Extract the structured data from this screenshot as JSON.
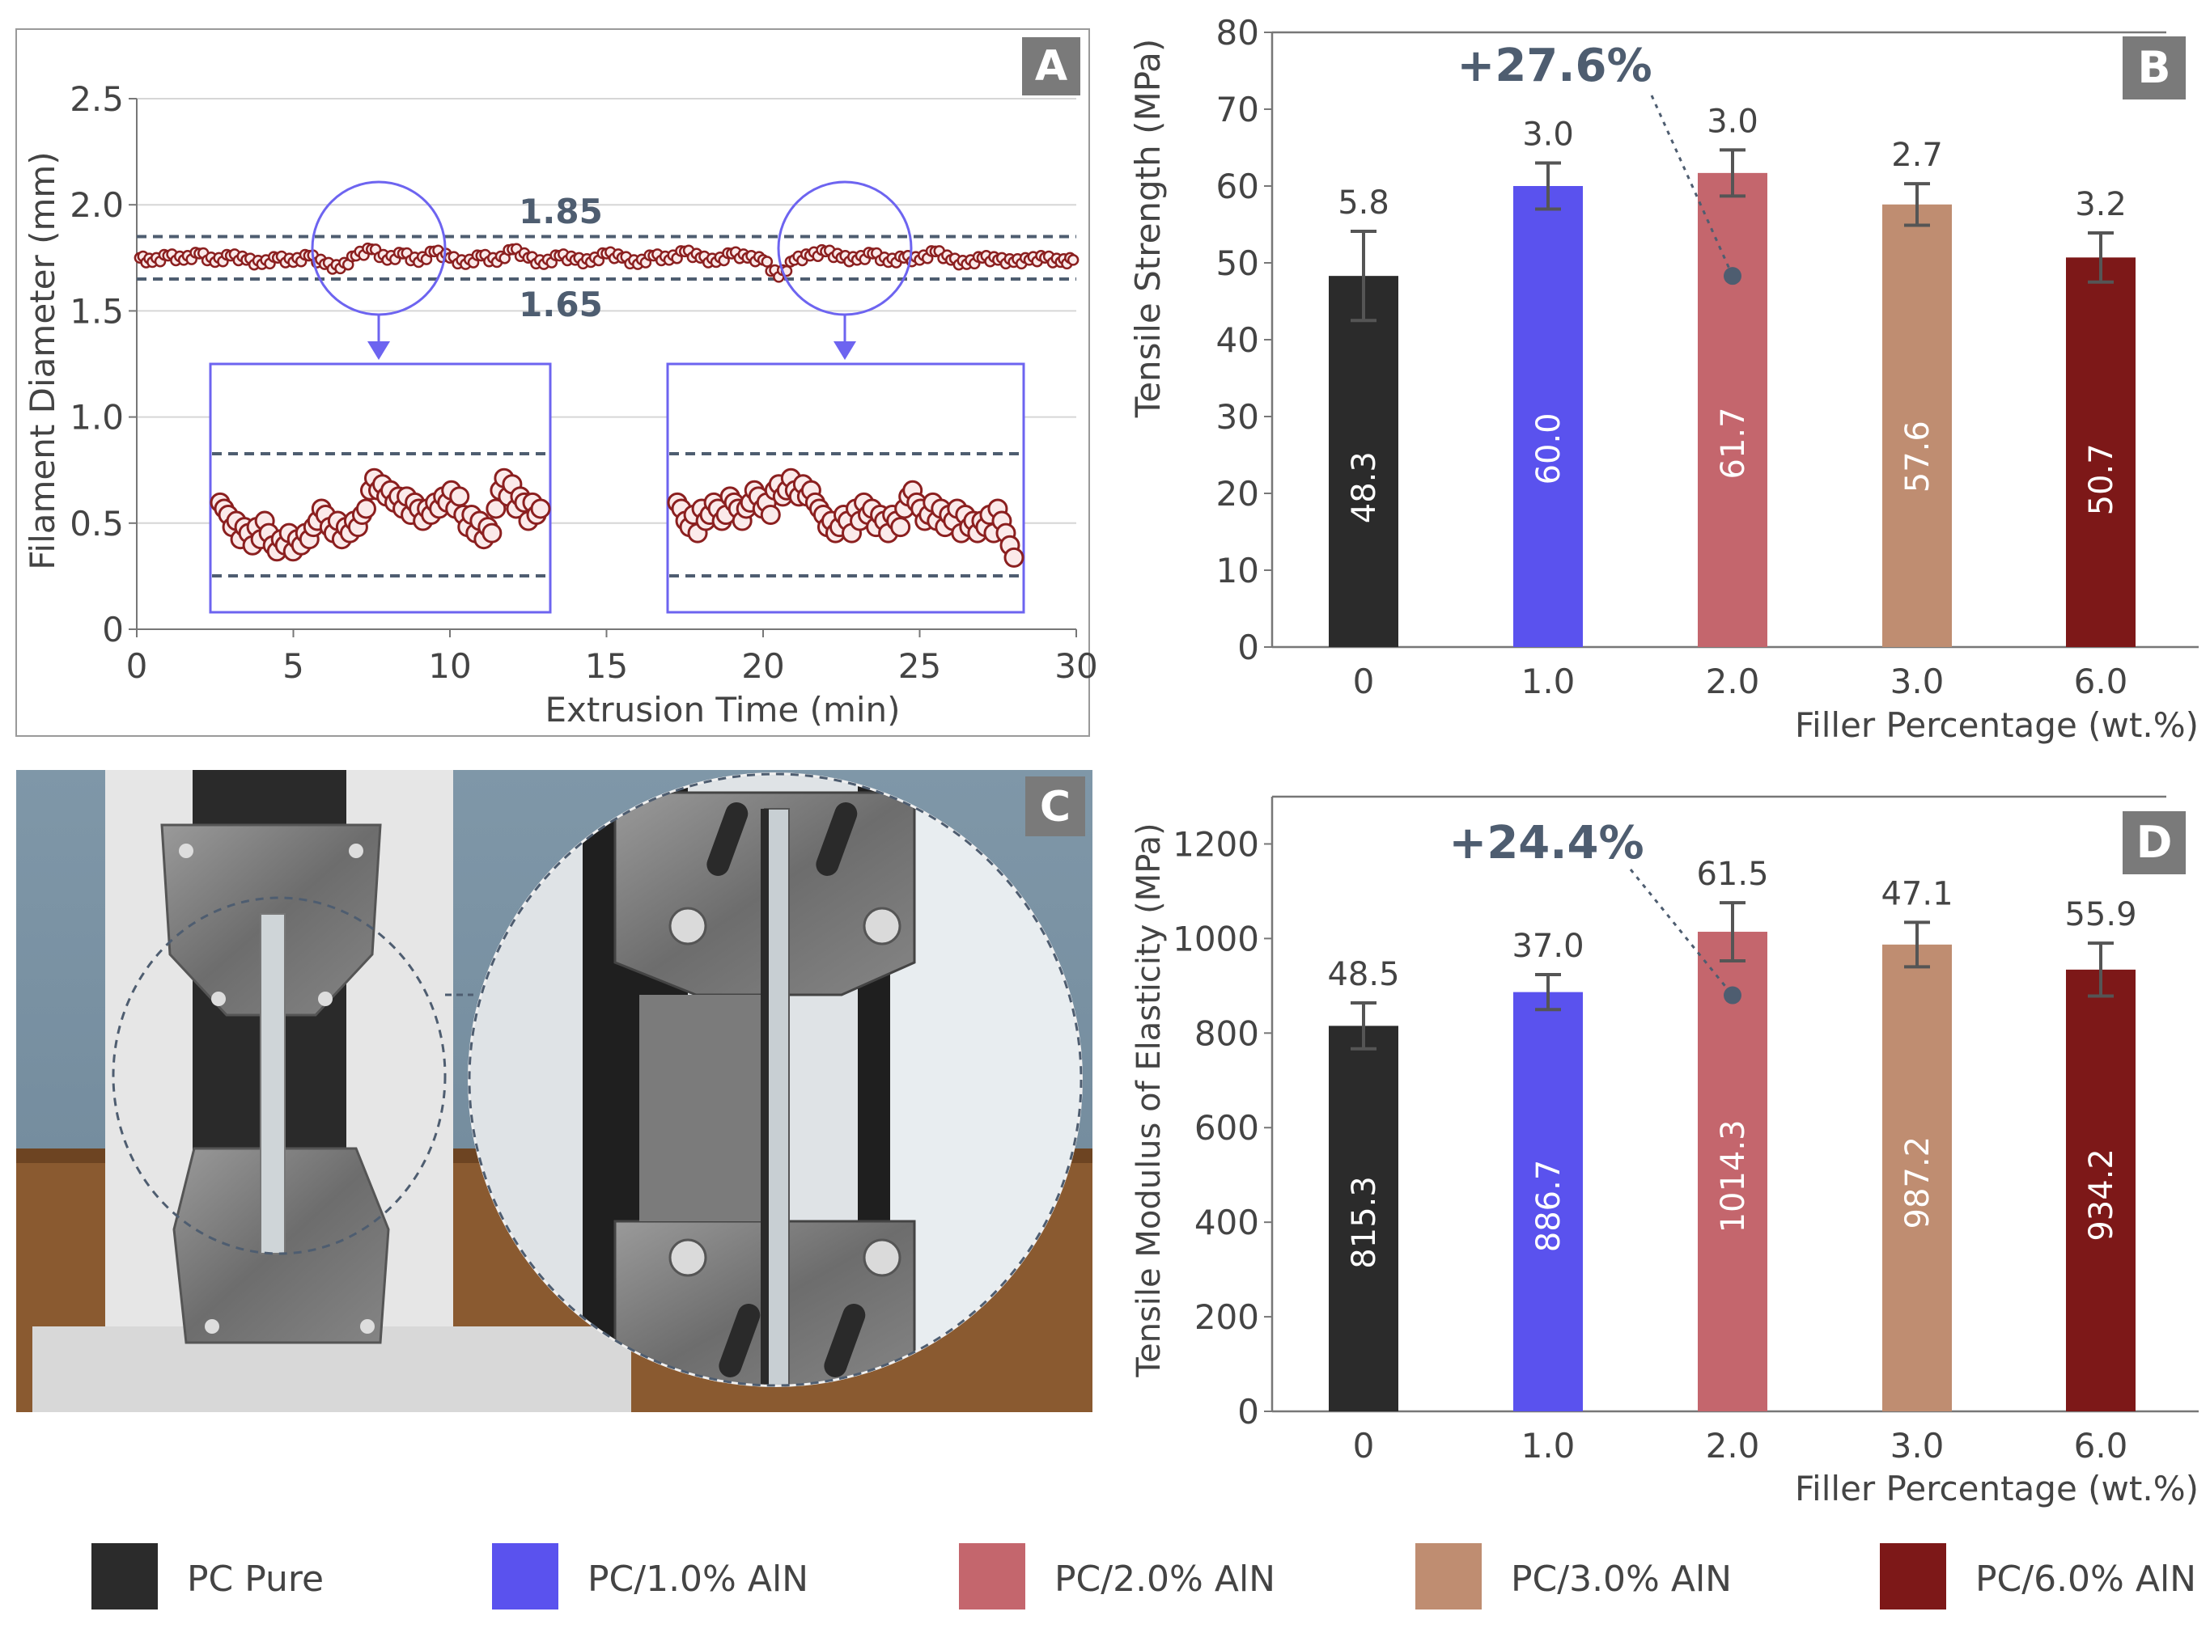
{
  "colors": {
    "pc_pure": "#2b2b2b",
    "pc_1": "#5a52ee",
    "pc_2": "#c4666d",
    "pc_3": "#bf8d71",
    "pc_6": "#7d1818",
    "marker": "#8b1f1f",
    "annotation": "#4e5d70",
    "circle": "#6d64f0",
    "error": "#555555"
  },
  "panel_a": {
    "label": "A",
    "chart_data": {
      "type": "scatter",
      "xlabel": "Extrusion Time (min)",
      "ylabel": "Filament Diameter (mm)",
      "xlim": [
        0,
        30
      ],
      "ylim": [
        0,
        2.5
      ],
      "xticks": [
        "0",
        "5",
        "10",
        "15",
        "20",
        "25",
        "30"
      ],
      "yticks": [
        "0",
        "0.5",
        "1.0",
        "1.5",
        "2.0",
        "2.5"
      ],
      "grid": true,
      "upper_limit": 1.85,
      "lower_limit": 1.65,
      "upper_label": "1.85",
      "lower_label": "1.65",
      "series": [
        {
          "x": [
            0.1,
            0.5,
            1.0,
            1.5,
            2.0,
            2.5,
            3.0,
            3.5,
            4.0,
            4.5,
            5.0,
            5.5,
            6.0,
            6.5,
            7.0,
            7.5,
            8.0,
            8.5,
            9.0,
            9.5,
            10.0,
            10.5,
            11.0,
            11.5,
            12.0,
            12.5,
            13.0,
            13.5,
            14.0,
            14.5,
            15.0,
            15.5,
            16.0,
            16.5,
            17.0,
            17.5,
            18.0,
            18.5,
            19.0,
            19.5,
            20.0,
            20.5,
            21.0,
            21.5,
            22.0,
            22.5,
            23.0,
            23.5,
            24.0,
            24.5,
            25.0,
            25.5,
            26.0,
            26.5,
            27.0,
            27.5,
            28.0,
            28.5,
            29.0,
            29.5,
            29.9
          ],
          "y": [
            1.75,
            1.73,
            1.76,
            1.74,
            1.77,
            1.73,
            1.76,
            1.74,
            1.72,
            1.75,
            1.73,
            1.76,
            1.72,
            1.7,
            1.76,
            1.79,
            1.74,
            1.77,
            1.73,
            1.78,
            1.75,
            1.72,
            1.76,
            1.73,
            1.79,
            1.75,
            1.72,
            1.76,
            1.74,
            1.73,
            1.77,
            1.75,
            1.72,
            1.76,
            1.74,
            1.78,
            1.75,
            1.73,
            1.77,
            1.75,
            1.74,
            1.66,
            1.74,
            1.76,
            1.78,
            1.75,
            1.74,
            1.77,
            1.73,
            1.75,
            1.74,
            1.78,
            1.74,
            1.72,
            1.75,
            1.74,
            1.73,
            1.74,
            1.75,
            1.73,
            1.74
          ]
        }
      ],
      "zoom_windows": [
        {
          "x": [
            0,
            1,
            2,
            3,
            4,
            5,
            6,
            7,
            8,
            9,
            10,
            11,
            12,
            13,
            14,
            15,
            16,
            17,
            18,
            19,
            20,
            21,
            22,
            23,
            24,
            25,
            26,
            27,
            28,
            29,
            30,
            31,
            32,
            33,
            34,
            35,
            36,
            37,
            38,
            39,
            40,
            41,
            42,
            43,
            44,
            45,
            46,
            47,
            48,
            49,
            50,
            51,
            52,
            53,
            54,
            55,
            56,
            57,
            58,
            59,
            60,
            61,
            62,
            63,
            64,
            65,
            66,
            67,
            68,
            69,
            70,
            71,
            72,
            73,
            74,
            75,
            76,
            77,
            78,
            79
          ],
          "y": [
            1.77,
            1.76,
            1.75,
            1.73,
            1.74,
            1.71,
            1.73,
            1.72,
            1.7,
            1.73,
            1.71,
            1.74,
            1.72,
            1.7,
            1.69,
            1.71,
            1.7,
            1.72,
            1.69,
            1.71,
            1.7,
            1.72,
            1.71,
            1.73,
            1.74,
            1.76,
            1.75,
            1.73,
            1.72,
            1.74,
            1.71,
            1.73,
            1.72,
            1.74,
            1.73,
            1.75,
            1.76,
            1.79,
            1.81,
            1.79,
            1.8,
            1.78,
            1.79,
            1.77,
            1.78,
            1.76,
            1.78,
            1.75,
            1.77,
            1.76,
            1.74,
            1.76,
            1.75,
            1.77,
            1.76,
            1.78,
            1.77,
            1.79,
            1.76,
            1.78,
            1.75,
            1.73,
            1.75,
            1.72,
            1.74,
            1.71,
            1.73,
            1.72,
            1.76,
            1.79,
            1.81,
            1.78,
            1.8,
            1.76,
            1.78,
            1.77,
            1.74,
            1.77,
            1.75,
            1.76
          ]
        },
        {
          "x": [
            0,
            1,
            2,
            3,
            4,
            5,
            6,
            7,
            8,
            9,
            10,
            11,
            12,
            13,
            14,
            15,
            16,
            17,
            18,
            19,
            20,
            21,
            22,
            23,
            24,
            25,
            26,
            27,
            28,
            29,
            30,
            31,
            32,
            33,
            34,
            35,
            36,
            37,
            38,
            39,
            40,
            41,
            42,
            43,
            44,
            45,
            46,
            47,
            48,
            49,
            50,
            51,
            52,
            53,
            54,
            55,
            56,
            57,
            58,
            59,
            60,
            61,
            62,
            63,
            64,
            65,
            66,
            67,
            68,
            69,
            70,
            71,
            72,
            73,
            74,
            75,
            76,
            77,
            78,
            79,
            80,
            81,
            82,
            83
          ],
          "y": [
            1.77,
            1.76,
            1.74,
            1.73,
            1.75,
            1.72,
            1.76,
            1.74,
            1.75,
            1.77,
            1.76,
            1.74,
            1.75,
            1.78,
            1.77,
            1.76,
            1.74,
            1.76,
            1.77,
            1.79,
            1.78,
            1.76,
            1.77,
            1.75,
            1.79,
            1.8,
            1.78,
            1.79,
            1.81,
            1.79,
            1.78,
            1.8,
            1.78,
            1.79,
            1.77,
            1.76,
            1.75,
            1.73,
            1.74,
            1.72,
            1.73,
            1.75,
            1.74,
            1.72,
            1.76,
            1.74,
            1.77,
            1.75,
            1.76,
            1.73,
            1.75,
            1.74,
            1.72,
            1.75,
            1.74,
            1.73,
            1.76,
            1.78,
            1.79,
            1.77,
            1.76,
            1.74,
            1.75,
            1.77,
            1.74,
            1.76,
            1.73,
            1.75,
            1.74,
            1.76,
            1.72,
            1.75,
            1.73,
            1.74,
            1.72,
            1.74,
            1.73,
            1.75,
            1.72,
            1.76,
            1.74,
            1.72,
            1.7,
            1.68
          ]
        }
      ]
    }
  },
  "panel_b": {
    "label": "B",
    "annotation": "+27.6%",
    "chart_data": {
      "type": "bar",
      "categories": [
        "0",
        "1.0",
        "2.0",
        "3.0",
        "6.0"
      ],
      "values": [
        48.3,
        60.0,
        61.7,
        57.6,
        50.7
      ],
      "value_labels": [
        "48.3",
        "60.0",
        "61.7",
        "57.6",
        "50.7"
      ],
      "errors": [
        5.8,
        3.0,
        3.0,
        2.7,
        3.2
      ],
      "error_labels": [
        "5.8",
        "3.0",
        "3.0",
        "2.7",
        "3.2"
      ],
      "xlabel": "Filler Percentage (wt.%)",
      "ylabel": "Tensile Strength (MPa)",
      "ylim": [
        0,
        80
      ],
      "yticks": [
        "0",
        "10",
        "20",
        "30",
        "40",
        "50",
        "60",
        "70",
        "80"
      ]
    }
  },
  "panel_c": {
    "label": "C"
  },
  "panel_d": {
    "label": "D",
    "annotation": "+24.4%",
    "chart_data": {
      "type": "bar",
      "categories": [
        "0",
        "1.0",
        "2.0",
        "3.0",
        "6.0"
      ],
      "values": [
        815.3,
        886.7,
        1014.3,
        987.2,
        934.2
      ],
      "value_labels": [
        "815.3",
        "886.7",
        "1014.3",
        "987.2",
        "934.2"
      ],
      "errors": [
        48.5,
        37.0,
        61.5,
        47.1,
        55.9
      ],
      "error_labels": [
        "48.5",
        "37.0",
        "61.5",
        "47.1",
        "55.9"
      ],
      "xlabel": "Filler Percentage (wt.%)",
      "ylabel": "Tensile Modulus of Elasticity (MPa)",
      "ylim": [
        0,
        1300
      ],
      "yticks": [
        "0",
        "200",
        "400",
        "600",
        "800",
        "1000",
        "1200"
      ]
    }
  },
  "legend": {
    "placement": "bottom",
    "items": [
      {
        "label": "PC Pure",
        "color": "#2b2b2b"
      },
      {
        "label": "PC/1.0% AlN",
        "color": "#5a52ee"
      },
      {
        "label": "PC/2.0% AlN",
        "color": "#c4666d"
      },
      {
        "label": "PC/3.0% AlN",
        "color": "#bf8d71"
      },
      {
        "label": "PC/6.0% AlN",
        "color": "#7d1818"
      }
    ]
  }
}
